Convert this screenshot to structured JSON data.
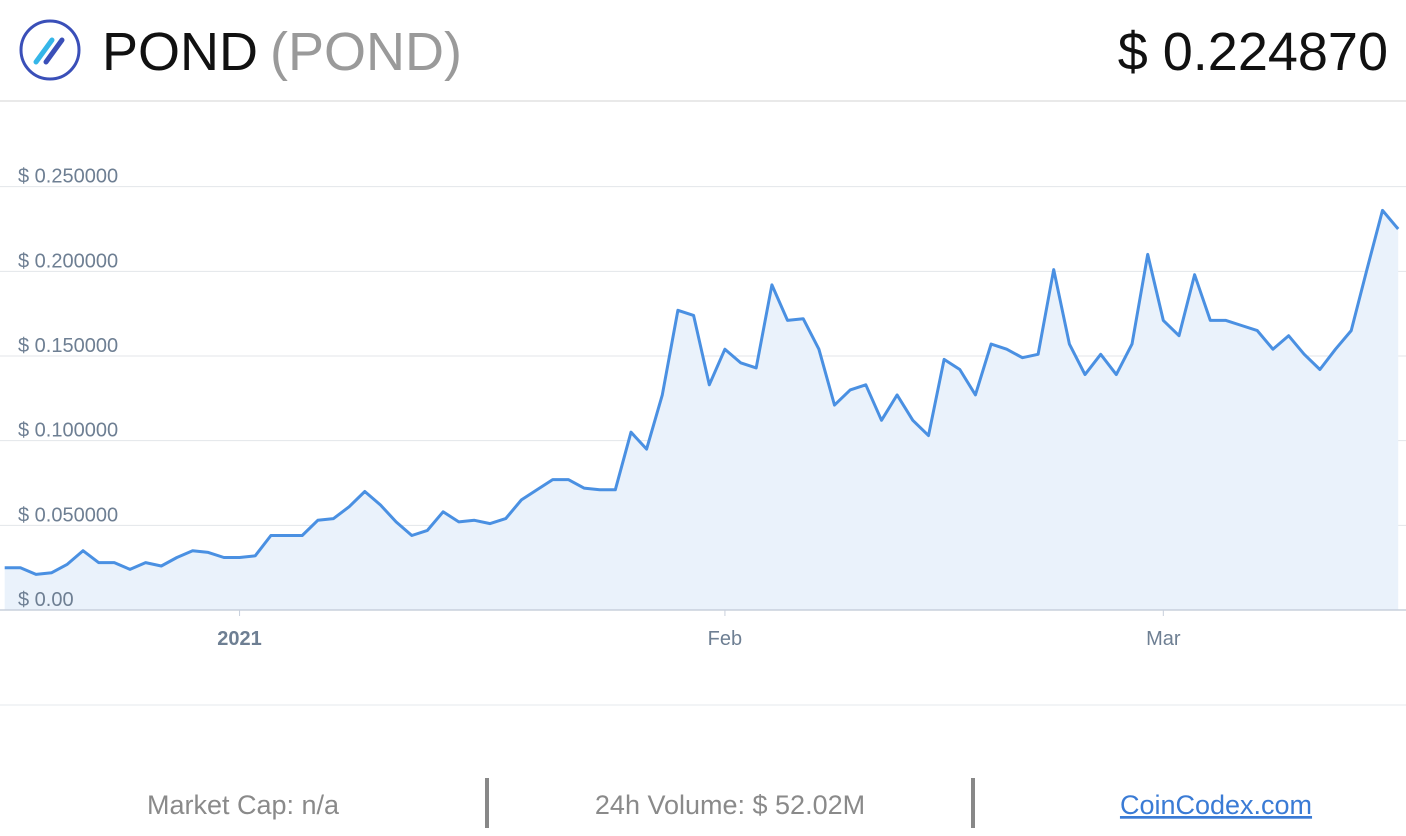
{
  "header": {
    "name": "POND",
    "symbol": "(POND)",
    "price": "$ 0.224870"
  },
  "chart_data": {
    "type": "line",
    "values": [
      0.025,
      0.025,
      0.021,
      0.022,
      0.027,
      0.035,
      0.028,
      0.028,
      0.024,
      0.028,
      0.026,
      0.031,
      0.035,
      0.034,
      0.031,
      0.031,
      0.032,
      0.044,
      0.044,
      0.044,
      0.053,
      0.054,
      0.061,
      0.07,
      0.062,
      0.052,
      0.044,
      0.047,
      0.058,
      0.052,
      0.053,
      0.051,
      0.054,
      0.065,
      0.071,
      0.077,
      0.077,
      0.072,
      0.071,
      0.071,
      0.105,
      0.095,
      0.127,
      0.177,
      0.174,
      0.133,
      0.154,
      0.146,
      0.143,
      0.192,
      0.171,
      0.172,
      0.154,
      0.121,
      0.13,
      0.133,
      0.112,
      0.127,
      0.112,
      0.103,
      0.148,
      0.142,
      0.127,
      0.157,
      0.154,
      0.149,
      0.151,
      0.201,
      0.157,
      0.139,
      0.151,
      0.139,
      0.157,
      0.21,
      0.171,
      0.162,
      0.198,
      0.171,
      0.171,
      0.168,
      0.165,
      0.154,
      0.162,
      0.151,
      0.142,
      0.154,
      0.165,
      0.201,
      0.236,
      0.225
    ],
    "color": "#4a90e2",
    "xlim": [
      -0.3,
      89.5
    ],
    "xticks": [
      {
        "value": 15,
        "label": "2021"
      },
      {
        "value": 46,
        "label": "Feb"
      },
      {
        "value": 74,
        "label": "Mar"
      }
    ],
    "ylim": [
      0,
      0.3
    ],
    "yticks": [
      {
        "value": 0,
        "label": "$ 0.00"
      },
      {
        "value": 0.05,
        "label": "$ 0.050000"
      },
      {
        "value": 0.1,
        "label": "$ 0.100000"
      },
      {
        "value": 0.15,
        "label": "$ 0.150000"
      },
      {
        "value": 0.2,
        "label": "$ 0.200000"
      },
      {
        "value": 0.25,
        "label": "$ 0.250000"
      }
    ],
    "grid": true
  },
  "footer": {
    "market_cap": "Market Cap: n/a",
    "volume": "24h Volume: $ 52.02M",
    "link": "CoinCodex.com"
  }
}
